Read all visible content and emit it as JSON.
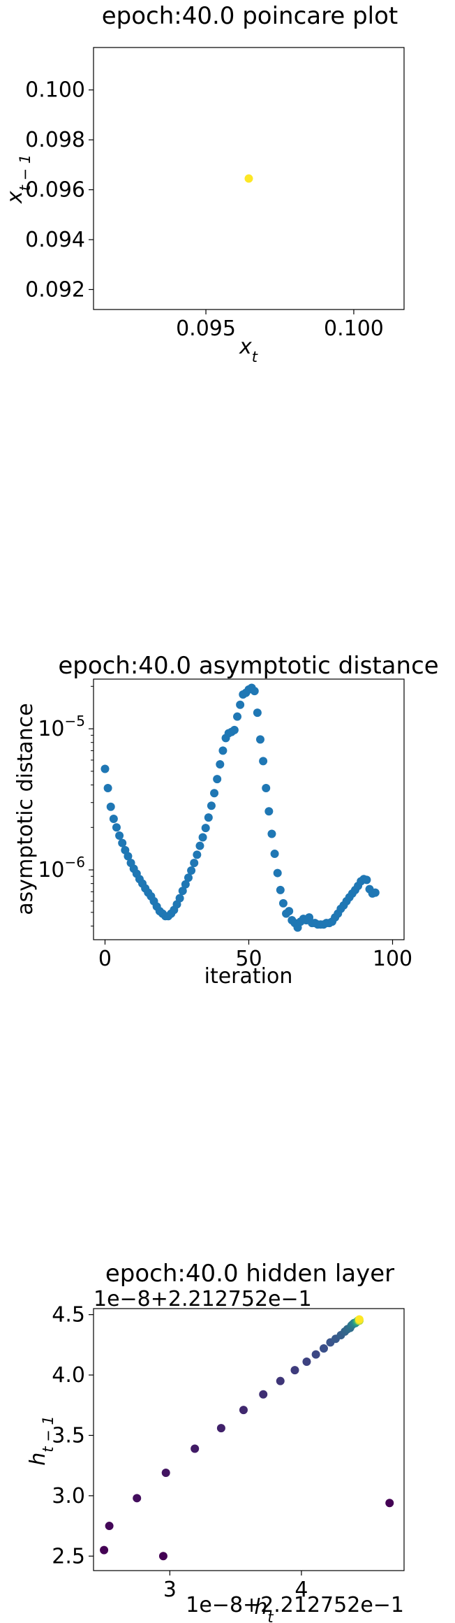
{
  "chart_data": [
    {
      "type": "scatter",
      "title": "epoch:40.0 poincare plot",
      "xlabel": "x_t",
      "ylabel": "x_{t-1}",
      "xlim": [
        0.0912,
        0.1017
      ],
      "ylim": [
        0.0912,
        0.1017
      ],
      "xticks": [
        {
          "value": 0.095,
          "label": "0.095"
        },
        {
          "value": 0.1,
          "label": "0.100"
        }
      ],
      "yticks": [
        {
          "value": 0.092,
          "label": "0.092"
        },
        {
          "value": 0.094,
          "label": "0.094"
        },
        {
          "value": 0.096,
          "label": "0.096"
        },
        {
          "value": 0.098,
          "label": "0.098"
        },
        {
          "value": 0.1,
          "label": "0.100"
        }
      ],
      "points": [
        {
          "x": 0.09645,
          "y": 0.09645
        }
      ],
      "point_color": "#fde725",
      "grid": false
    },
    {
      "type": "scatter",
      "title": "epoch:40.0 asymptotic distance",
      "xlabel": "iteration",
      "ylabel": "asymptotic distance",
      "yscale": "log",
      "xlim": [
        -4,
        104
      ],
      "ylim": [
        3.2e-07,
        2.25e-05
      ],
      "xticks": [
        {
          "value": 0,
          "label": "0"
        },
        {
          "value": 50,
          "label": "50"
        },
        {
          "value": 100,
          "label": "100"
        }
      ],
      "yticks": [
        {
          "value": 1e-06,
          "base": "10",
          "exp": "−6"
        },
        {
          "value": 1e-05,
          "base": "10",
          "exp": "−5"
        }
      ],
      "point_color": "#1f77b4",
      "y": [
        5.2e-06,
        3.8e-06,
        2.8e-06,
        2.3e-06,
        2e-06,
        1.75e-06,
        1.55e-06,
        1.38e-06,
        1.25e-06,
        1.12e-06,
        1.02e-06,
        9.4e-07,
        8.6e-07,
        8e-07,
        7.4e-07,
        6.9e-07,
        6.5e-07,
        6e-07,
        5.5e-07,
        5.1e-07,
        4.9e-07,
        4.7e-07,
        4.7e-07,
        4.9e-07,
        5.2e-07,
        5.7e-07,
        6.3e-07,
        7.1e-07,
        7.9e-07,
        8.8e-07,
        9.9e-07,
        1.12e-06,
        1.28e-06,
        1.48e-06,
        1.7e-06,
        1.98e-06,
        2.35e-06,
        2.85e-06,
        3.5e-06,
        4.4e-06,
        5.6e-06,
        7e-06,
        8.6e-06,
        9.3e-06,
        9.5e-06,
        9.8e-06,
        1.22e-05,
        1.48e-05,
        1.75e-05,
        1.8e-05,
        1.9e-05,
        1.95e-05,
        1.85e-05,
        1.3e-05,
        8.4e-06,
        5.9e-06,
        3.8e-06,
        2.6e-06,
        1.8e-06,
        1.3e-06,
        9.5e-07,
        7.2e-07,
        5.8e-07,
        4.9e-07,
        5.1e-07,
        4.4e-07,
        4.2e-07,
        3.9e-07,
        4.3e-07,
        4.5e-07,
        4.4e-07,
        4.6e-07,
        4.2e-07,
        4.2e-07,
        4.1e-07,
        4.1e-07,
        4.1e-07,
        4.2e-07,
        4.2e-07,
        4.3e-07,
        4.6e-07,
        4.9e-07,
        5.3e-07,
        5.6e-07,
        6e-07,
        6.4e-07,
        6.8e-07,
        7.2e-07,
        7.7e-07,
        8.3e-07,
        8.6e-07,
        8.5e-07,
        7.3e-07,
        6.8e-07,
        6.9e-07
      ],
      "grid": false
    },
    {
      "type": "scatter",
      "title": "epoch:40.0 hidden layer",
      "xlabel": "h_t",
      "ylabel": "h_{t-1}",
      "x_offset_label": "1e−8+2.212752e−1",
      "y_offset_label": "1e−8+2.212752e−1",
      "xlim": [
        2.42,
        4.78
      ],
      "ylim": [
        2.38,
        4.55
      ],
      "xticks": [
        {
          "value": 3,
          "label": "3"
        },
        {
          "value": 4,
          "label": "4"
        }
      ],
      "yticks": [
        {
          "value": 2.5,
          "label": "2.5"
        },
        {
          "value": 3.0,
          "label": "3.0"
        },
        {
          "value": 3.5,
          "label": "3.5"
        },
        {
          "value": 4.0,
          "label": "4.0"
        },
        {
          "value": 4.5,
          "label": "4.5"
        }
      ],
      "colormap": "viridis",
      "points": [
        {
          "x": 2.5,
          "y": 2.55,
          "c": 0.0
        },
        {
          "x": 2.95,
          "y": 2.5,
          "c": 0.0
        },
        {
          "x": 4.67,
          "y": 2.94,
          "c": 0.0
        },
        {
          "x": 2.54,
          "y": 2.75,
          "c": 0.02
        },
        {
          "x": 2.75,
          "y": 2.98,
          "c": 0.04
        },
        {
          "x": 2.97,
          "y": 3.19,
          "c": 0.06
        },
        {
          "x": 3.19,
          "y": 3.39,
          "c": 0.08
        },
        {
          "x": 3.39,
          "y": 3.56,
          "c": 0.1
        },
        {
          "x": 3.56,
          "y": 3.71,
          "c": 0.12
        },
        {
          "x": 3.71,
          "y": 3.84,
          "c": 0.14
        },
        {
          "x": 3.84,
          "y": 3.95,
          "c": 0.16
        },
        {
          "x": 3.95,
          "y": 4.04,
          "c": 0.18
        },
        {
          "x": 4.04,
          "y": 4.11,
          "c": 0.2
        },
        {
          "x": 4.11,
          "y": 4.17,
          "c": 0.22
        },
        {
          "x": 4.17,
          "y": 4.22,
          "c": 0.24
        },
        {
          "x": 4.22,
          "y": 4.27,
          "c": 0.26
        },
        {
          "x": 4.26,
          "y": 4.3,
          "c": 0.28
        },
        {
          "x": 4.3,
          "y": 4.33,
          "c": 0.3
        },
        {
          "x": 4.33,
          "y": 4.36,
          "c": 0.32
        },
        {
          "x": 4.35,
          "y": 4.38,
          "c": 0.34
        },
        {
          "x": 4.37,
          "y": 4.39,
          "c": 0.36
        },
        {
          "x": 4.38,
          "y": 4.41,
          "c": 0.38
        },
        {
          "x": 4.39,
          "y": 4.42,
          "c": 0.4
        },
        {
          "x": 4.4,
          "y": 4.43,
          "c": 0.43
        },
        {
          "x": 4.41,
          "y": 4.43,
          "c": 0.46
        },
        {
          "x": 4.42,
          "y": 4.44,
          "c": 0.5
        },
        {
          "x": 4.42,
          "y": 4.44,
          "c": 0.55
        },
        {
          "x": 4.43,
          "y": 4.45,
          "c": 0.62
        },
        {
          "x": 4.43,
          "y": 4.45,
          "c": 0.7
        },
        {
          "x": 4.44,
          "y": 4.45,
          "c": 0.8
        },
        {
          "x": 4.44,
          "y": 4.45,
          "c": 0.9
        },
        {
          "x": 4.44,
          "y": 4.46,
          "c": 1.0
        }
      ],
      "grid": false
    }
  ]
}
